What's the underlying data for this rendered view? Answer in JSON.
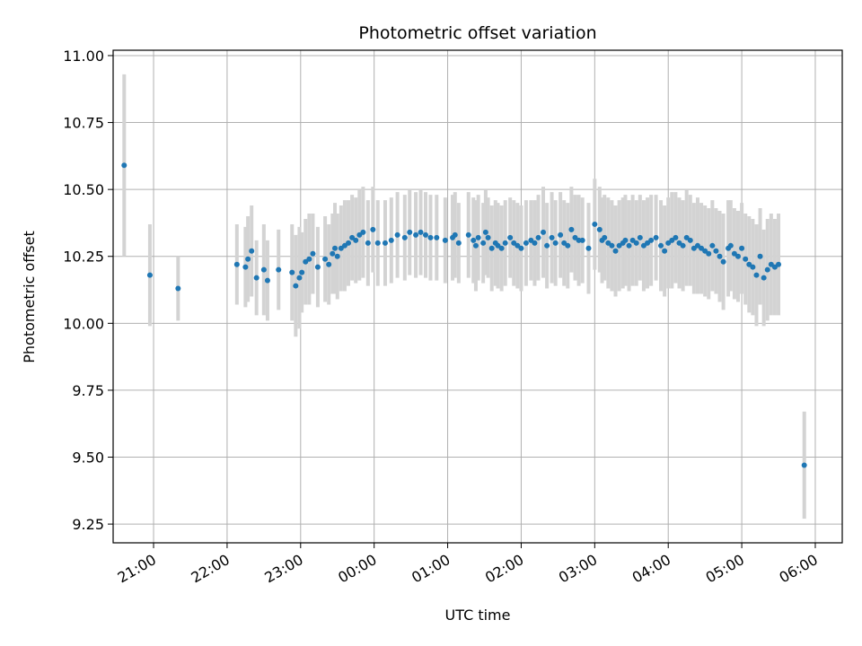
{
  "chart_data": {
    "type": "scatter",
    "title": "Photometric offset variation",
    "xlabel": "UTC time",
    "ylabel": "Photometric offset",
    "xlim": [
      "20:27",
      "06:22"
    ],
    "ylim": [
      9.18,
      11.02
    ],
    "grid": true,
    "x_tick_values": [
      "21:00",
      "22:00",
      "23:00",
      "00:00",
      "01:00",
      "02:00",
      "03:00",
      "04:00",
      "05:00",
      "06:00"
    ],
    "x_tick_labels": [
      "21:00",
      "22:00",
      "23:00",
      "00:00",
      "01:00",
      "02:00",
      "03:00",
      "04:00",
      "05:00",
      "06:00"
    ],
    "y_tick_values": [
      9.25,
      9.5,
      9.75,
      10.0,
      10.25,
      10.5,
      10.75,
      11.0
    ],
    "y_tick_labels": [
      "9.25",
      "9.50",
      "9.75",
      "10.00",
      "10.25",
      "10.50",
      "10.75",
      "11.00"
    ],
    "colors": {
      "point": "#1f77b4",
      "errorbar": "#d3d3d3",
      "grid": "#b0b0b0"
    },
    "series": [
      {
        "x": [
          "20:36",
          "20:57",
          "21:20",
          "22:08",
          "22:15",
          "22:17",
          "22:20",
          "22:24",
          "22:30",
          "22:33",
          "22:42",
          "22:53",
          "22:56",
          "22:59",
          "23:01",
          "23:04",
          "23:07",
          "23:10",
          "23:14",
          "23:20",
          "23:23",
          "23:26",
          "23:28",
          "23:30",
          "23:33",
          "23:36",
          "23:39",
          "23:42",
          "23:45",
          "23:48",
          "23:51",
          "23:55",
          "23:59",
          "00:03",
          "00:09",
          "00:14",
          "00:19",
          "00:25",
          "00:29",
          "00:34",
          "00:38",
          "00:42",
          "00:46",
          "00:51",
          "00:58",
          "01:04",
          "01:06",
          "01:09",
          "01:17",
          "01:21",
          "01:23",
          "01:25",
          "01:29",
          "01:31",
          "01:33",
          "01:36",
          "01:39",
          "01:41",
          "01:44",
          "01:47",
          "01:51",
          "01:54",
          "01:57",
          "02:00",
          "02:04",
          "02:08",
          "02:11",
          "02:14",
          "02:18",
          "02:21",
          "02:25",
          "02:28",
          "02:32",
          "02:35",
          "02:38",
          "02:41",
          "02:44",
          "02:47",
          "02:50",
          "02:55",
          "03:00",
          "03:04",
          "03:06",
          "03:08",
          "03:11",
          "03:14",
          "03:17",
          "03:20",
          "03:23",
          "03:25",
          "03:28",
          "03:31",
          "03:34",
          "03:37",
          "03:40",
          "03:43",
          "03:46",
          "03:50",
          "03:54",
          "03:57",
          "04:00",
          "04:03",
          "04:06",
          "04:09",
          "04:12",
          "04:15",
          "04:18",
          "04:21",
          "04:24",
          "04:27",
          "04:30",
          "04:33",
          "04:36",
          "04:39",
          "04:42",
          "04:45",
          "04:49",
          "04:51",
          "04:54",
          "04:57",
          "05:00",
          "05:03",
          "05:06",
          "05:09",
          "05:12",
          "05:15",
          "05:18",
          "05:21",
          "05:24",
          "05:27",
          "05:30",
          "05:51"
        ],
        "y": [
          10.59,
          10.18,
          10.13,
          10.22,
          10.21,
          10.24,
          10.27,
          10.17,
          10.2,
          10.16,
          10.2,
          10.19,
          10.14,
          10.17,
          10.19,
          10.23,
          10.24,
          10.26,
          10.21,
          10.24,
          10.22,
          10.26,
          10.28,
          10.25,
          10.28,
          10.29,
          10.3,
          10.32,
          10.31,
          10.33,
          10.34,
          10.3,
          10.35,
          10.3,
          10.3,
          10.31,
          10.33,
          10.32,
          10.34,
          10.33,
          10.34,
          10.33,
          10.32,
          10.32,
          10.31,
          10.32,
          10.33,
          10.3,
          10.33,
          10.31,
          10.29,
          10.32,
          10.3,
          10.34,
          10.32,
          10.28,
          10.3,
          10.29,
          10.28,
          10.3,
          10.32,
          10.3,
          10.29,
          10.28,
          10.3,
          10.31,
          10.3,
          10.32,
          10.34,
          10.29,
          10.32,
          10.3,
          10.33,
          10.3,
          10.29,
          10.35,
          10.32,
          10.31,
          10.31,
          10.28,
          10.37,
          10.35,
          10.31,
          10.32,
          10.3,
          10.29,
          10.27,
          10.29,
          10.3,
          10.31,
          10.29,
          10.31,
          10.3,
          10.32,
          10.29,
          10.3,
          10.31,
          10.32,
          10.29,
          10.27,
          10.3,
          10.31,
          10.32,
          10.3,
          10.29,
          10.32,
          10.31,
          10.28,
          10.29,
          10.28,
          10.27,
          10.26,
          10.29,
          10.27,
          10.25,
          10.23,
          10.28,
          10.29,
          10.26,
          10.25,
          10.28,
          10.24,
          10.22,
          10.21,
          10.18,
          10.25,
          10.17,
          10.2,
          10.22,
          10.21,
          10.22,
          9.47
        ],
        "error": [
          0.34,
          0.19,
          0.12,
          0.15,
          0.15,
          0.16,
          0.17,
          0.14,
          0.17,
          0.15,
          0.15,
          0.18,
          0.19,
          0.19,
          0.15,
          0.16,
          0.17,
          0.15,
          0.15,
          0.16,
          0.15,
          0.15,
          0.17,
          0.16,
          0.16,
          0.17,
          0.16,
          0.16,
          0.16,
          0.17,
          0.17,
          0.16,
          0.16,
          0.16,
          0.16,
          0.16,
          0.16,
          0.16,
          0.16,
          0.16,
          0.16,
          0.16,
          0.16,
          0.16,
          0.16,
          0.16,
          0.16,
          0.15,
          0.16,
          0.16,
          0.17,
          0.16,
          0.15,
          0.16,
          0.15,
          0.16,
          0.16,
          0.16,
          0.16,
          0.16,
          0.15,
          0.16,
          0.16,
          0.16,
          0.16,
          0.15,
          0.16,
          0.16,
          0.17,
          0.16,
          0.17,
          0.16,
          0.16,
          0.16,
          0.16,
          0.16,
          0.16,
          0.17,
          0.16,
          0.17,
          0.17,
          0.16,
          0.16,
          0.16,
          0.17,
          0.17,
          0.17,
          0.17,
          0.17,
          0.17,
          0.17,
          0.17,
          0.16,
          0.16,
          0.17,
          0.17,
          0.17,
          0.16,
          0.17,
          0.17,
          0.17,
          0.18,
          0.17,
          0.17,
          0.17,
          0.18,
          0.17,
          0.17,
          0.18,
          0.17,
          0.17,
          0.17,
          0.17,
          0.16,
          0.17,
          0.18,
          0.18,
          0.17,
          0.17,
          0.17,
          0.17,
          0.17,
          0.18,
          0.18,
          0.19,
          0.18,
          0.18,
          0.19,
          0.19,
          0.18,
          0.19,
          0.2
        ]
      }
    ]
  }
}
